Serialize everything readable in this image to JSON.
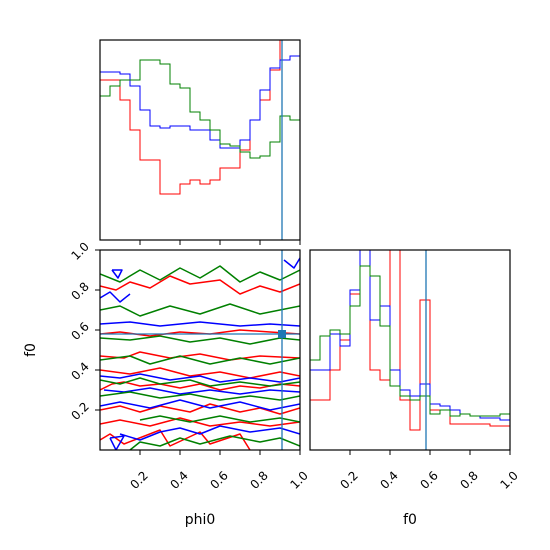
{
  "chart_data": {
    "type": "corner",
    "parameters": [
      "phi0",
      "f0"
    ],
    "xlabel_phi0": "phi0",
    "xlabel_f0": "f0",
    "ylabel_f0": "f0",
    "ticks": {
      "phi0": [
        0.2,
        0.4,
        0.6,
        0.8,
        1.0
      ],
      "f0": [
        0.2,
        0.4,
        0.6,
        0.8,
        1.0
      ]
    },
    "tick_labels": {
      "phi0": [
        "0.2",
        "0.4",
        "0.6",
        "0.8",
        "1.0"
      ],
      "f0": [
        "0.2",
        "0.4",
        "0.6",
        "0.8",
        "1.0"
      ]
    },
    "xlim": [
      0.0,
      1.0
    ],
    "ylim": [
      0.0,
      1.0
    ],
    "truth": {
      "phi0": 0.91,
      "f0": 0.58,
      "color": "#1f77b4"
    },
    "colors": {
      "red": "#ff0000",
      "blue": "#0000ff",
      "green": "#008000"
    },
    "hist_phi0": {
      "bins": [
        0,
        0.05,
        0.1,
        0.15,
        0.2,
        0.25,
        0.3,
        0.35,
        0.4,
        0.45,
        0.5,
        0.55,
        0.6,
        0.65,
        0.7,
        0.75,
        0.8,
        0.85,
        0.9,
        0.95,
        1.0
      ],
      "series": [
        {
          "color": "red",
          "values": [
            0.8,
            0.8,
            0.7,
            0.55,
            0.4,
            0.4,
            0.23,
            0.23,
            0.28,
            0.3,
            0.28,
            0.3,
            0.36,
            0.36,
            0.45,
            0.6,
            0.7,
            0.85,
            1.05,
            1.05
          ]
        },
        {
          "color": "blue",
          "values": [
            0.84,
            0.84,
            0.83,
            0.77,
            0.65,
            0.57,
            0.56,
            0.57,
            0.57,
            0.55,
            0.55,
            0.5,
            0.46,
            0.46,
            0.5,
            0.6,
            0.75,
            0.86,
            0.9,
            0.92
          ]
        },
        {
          "color": "green",
          "values": [
            0.72,
            0.77,
            0.8,
            0.8,
            0.9,
            0.9,
            0.88,
            0.78,
            0.76,
            0.64,
            0.6,
            0.55,
            0.48,
            0.47,
            0.44,
            0.41,
            0.42,
            0.49,
            0.62,
            0.6
          ]
        }
      ]
    },
    "hist_f0": {
      "bins": [
        0,
        0.05,
        0.1,
        0.15,
        0.2,
        0.25,
        0.3,
        0.35,
        0.4,
        0.45,
        0.5,
        0.55,
        0.6,
        0.65,
        0.7,
        0.75,
        0.8,
        0.85,
        0.9,
        0.95,
        1.0
      ],
      "series": [
        {
          "color": "red",
          "values": [
            0.25,
            0.25,
            0.4,
            0.55,
            0.78,
            1.1,
            0.4,
            0.35,
            1.2,
            0.25,
            0.1,
            0.75,
            0.2,
            0.2,
            0.13,
            0.13,
            0.13,
            0.13,
            0.12,
            0.12
          ]
        },
        {
          "color": "blue",
          "values": [
            0.4,
            0.4,
            0.58,
            0.52,
            0.8,
            1.15,
            0.65,
            0.72,
            0.4,
            0.3,
            0.27,
            0.33,
            0.23,
            0.22,
            0.2,
            0.18,
            0.17,
            0.16,
            0.16,
            0.15
          ]
        },
        {
          "color": "green",
          "values": [
            0.45,
            0.57,
            0.6,
            0.58,
            0.72,
            0.92,
            0.87,
            0.62,
            0.32,
            0.27,
            0.25,
            0.27,
            0.18,
            0.2,
            0.17,
            0.18,
            0.17,
            0.17,
            0.17,
            0.18
          ]
        }
      ]
    },
    "contours_2d": [
      {
        "color": "red",
        "paths": [
          [
            [
              0.0,
              0.3
            ],
            [
              0.06,
              0.33
            ],
            [
              0.12,
              0.34
            ],
            [
              0.2,
              0.32
            ],
            [
              0.3,
              0.33
            ],
            [
              0.4,
              0.31
            ],
            [
              0.5,
              0.33
            ],
            [
              0.6,
              0.3
            ],
            [
              0.7,
              0.32
            ],
            [
              0.8,
              0.31
            ],
            [
              0.9,
              0.33
            ],
            [
              1.0,
              0.32
            ]
          ],
          [
            [
              0.0,
              0.2
            ],
            [
              0.1,
              0.22
            ],
            [
              0.2,
              0.19
            ],
            [
              0.3,
              0.22
            ],
            [
              0.45,
              0.19
            ],
            [
              0.55,
              0.23
            ],
            [
              0.7,
              0.19
            ],
            [
              0.8,
              0.21
            ],
            [
              0.9,
              0.18
            ],
            [
              1.0,
              0.21
            ]
          ],
          [
            [
              0.0,
              0.58
            ],
            [
              0.1,
              0.59
            ],
            [
              0.25,
              0.57
            ],
            [
              0.4,
              0.59
            ],
            [
              0.55,
              0.58
            ],
            [
              0.7,
              0.6
            ],
            [
              0.85,
              0.59
            ],
            [
              1.0,
              0.58
            ]
          ],
          [
            [
              0.0,
              0.82
            ],
            [
              0.08,
              0.8
            ],
            [
              0.15,
              0.84
            ],
            [
              0.25,
              0.81
            ],
            [
              0.35,
              0.87
            ],
            [
              0.45,
              0.83
            ],
            [
              0.6,
              0.85
            ],
            [
              0.7,
              0.78
            ],
            [
              0.8,
              0.82
            ],
            [
              0.9,
              0.79
            ],
            [
              1.0,
              0.83
            ]
          ],
          [
            [
              0.0,
              0.47
            ],
            [
              0.12,
              0.46
            ],
            [
              0.2,
              0.49
            ],
            [
              0.35,
              0.46
            ],
            [
              0.5,
              0.48
            ],
            [
              0.65,
              0.45
            ],
            [
              0.8,
              0.47
            ],
            [
              1.0,
              0.46
            ]
          ],
          [
            [
              0.0,
              0.05
            ],
            [
              0.05,
              0.08
            ],
            [
              0.12,
              0.03
            ],
            [
              0.3,
              0.1
            ],
            [
              0.35,
              0.02
            ],
            [
              0.5,
              0.09
            ],
            [
              0.55,
              0.03
            ],
            [
              0.7,
              0.08
            ],
            [
              0.75,
              0.0
            ]
          ],
          [
            [
              0.0,
              0.4
            ],
            [
              0.15,
              0.38
            ],
            [
              0.3,
              0.41
            ],
            [
              0.45,
              0.37
            ],
            [
              0.6,
              0.39
            ],
            [
              0.75,
              0.36
            ],
            [
              0.9,
              0.39
            ],
            [
              1.0,
              0.37
            ]
          ],
          [
            [
              0.0,
              0.13
            ],
            [
              0.1,
              0.15
            ],
            [
              0.25,
              0.12
            ],
            [
              0.4,
              0.16
            ],
            [
              0.55,
              0.12
            ],
            [
              0.7,
              0.14
            ],
            [
              0.85,
              0.12
            ],
            [
              1.0,
              0.14
            ]
          ]
        ]
      },
      {
        "color": "blue",
        "paths": [
          [
            [
              0.0,
              0.37
            ],
            [
              0.1,
              0.36
            ],
            [
              0.2,
              0.38
            ],
            [
              0.35,
              0.35
            ],
            [
              0.5,
              0.37
            ],
            [
              0.6,
              0.34
            ],
            [
              0.75,
              0.36
            ],
            [
              0.9,
              0.34
            ],
            [
              1.0,
              0.36
            ]
          ],
          [
            [
              0.0,
              0.22
            ],
            [
              0.1,
              0.24
            ],
            [
              0.25,
              0.21
            ],
            [
              0.4,
              0.25
            ],
            [
              0.55,
              0.21
            ],
            [
              0.7,
              0.24
            ],
            [
              0.85,
              0.2
            ],
            [
              1.0,
              0.23
            ]
          ],
          [
            [
              0.0,
              0.63
            ],
            [
              0.15,
              0.64
            ],
            [
              0.3,
              0.62
            ],
            [
              0.5,
              0.64
            ],
            [
              0.7,
              0.62
            ],
            [
              0.85,
              0.63
            ],
            [
              1.0,
              0.62
            ]
          ],
          [
            [
              0.02,
              0.3
            ],
            [
              0.12,
              0.29
            ],
            [
              0.25,
              0.31
            ],
            [
              0.4,
              0.28
            ],
            [
              0.55,
              0.3
            ],
            [
              0.7,
              0.28
            ],
            [
              0.85,
              0.3
            ],
            [
              1.0,
              0.29
            ]
          ],
          [
            [
              0.05,
              0.06
            ],
            [
              0.08,
              0.0
            ],
            [
              0.12,
              0.07
            ],
            [
              0.05,
              0.06
            ]
          ],
          [
            [
              0.06,
              0.9
            ],
            [
              0.09,
              0.86
            ],
            [
              0.11,
              0.9
            ],
            [
              0.06,
              0.9
            ]
          ],
          [
            [
              0.1,
              0.08
            ],
            [
              0.2,
              0.05
            ],
            [
              0.3,
              0.09
            ],
            [
              0.4,
              0.11
            ],
            [
              0.5,
              0.08
            ],
            [
              0.6,
              0.12
            ],
            [
              0.75,
              0.09
            ],
            [
              0.9,
              0.11
            ],
            [
              1.0,
              0.08
            ]
          ],
          [
            [
              0.0,
              0.76
            ],
            [
              0.05,
              0.79
            ],
            [
              0.1,
              0.74
            ],
            [
              0.15,
              0.78
            ]
          ],
          [
            [
              0.92,
              0.95
            ],
            [
              0.97,
              0.91
            ],
            [
              1.0,
              0.96
            ]
          ]
        ]
      },
      {
        "color": "green",
        "paths": [
          [
            [
              0.0,
              0.35
            ],
            [
              0.1,
              0.33
            ],
            [
              0.2,
              0.36
            ],
            [
              0.3,
              0.33
            ],
            [
              0.45,
              0.35
            ],
            [
              0.55,
              0.32
            ],
            [
              0.7,
              0.34
            ],
            [
              0.85,
              0.32
            ],
            [
              1.0,
              0.34
            ]
          ],
          [
            [
              0.0,
              0.27
            ],
            [
              0.15,
              0.29
            ],
            [
              0.3,
              0.26
            ],
            [
              0.45,
              0.28
            ],
            [
              0.6,
              0.25
            ],
            [
              0.75,
              0.27
            ],
            [
              0.9,
              0.25
            ],
            [
              1.0,
              0.27
            ]
          ],
          [
            [
              0.0,
              0.56
            ],
            [
              0.15,
              0.55
            ],
            [
              0.3,
              0.57
            ],
            [
              0.45,
              0.54
            ],
            [
              0.6,
              0.56
            ],
            [
              0.75,
              0.53
            ],
            [
              0.9,
              0.56
            ],
            [
              1.0,
              0.55
            ]
          ],
          [
            [
              0.0,
              0.88
            ],
            [
              0.1,
              0.84
            ],
            [
              0.2,
              0.9
            ],
            [
              0.3,
              0.85
            ],
            [
              0.4,
              0.91
            ],
            [
              0.5,
              0.86
            ],
            [
              0.6,
              0.92
            ],
            [
              0.7,
              0.84
            ],
            [
              0.8,
              0.89
            ],
            [
              0.9,
              0.85
            ],
            [
              1.0,
              0.9
            ]
          ],
          [
            [
              0.0,
              0.7
            ],
            [
              0.1,
              0.72
            ],
            [
              0.2,
              0.67
            ],
            [
              0.35,
              0.72
            ],
            [
              0.5,
              0.68
            ],
            [
              0.65,
              0.73
            ],
            [
              0.8,
              0.68
            ],
            [
              1.0,
              0.72
            ]
          ],
          [
            [
              0.0,
              0.45
            ],
            [
              0.15,
              0.47
            ],
            [
              0.25,
              0.43
            ],
            [
              0.4,
              0.47
            ],
            [
              0.55,
              0.43
            ],
            [
              0.7,
              0.46
            ],
            [
              0.85,
              0.43
            ],
            [
              1.0,
              0.46
            ]
          ],
          [
            [
              0.15,
              0.0
            ],
            [
              0.2,
              0.04
            ],
            [
              0.3,
              0.02
            ],
            [
              0.4,
              0.06
            ],
            [
              0.5,
              0.03
            ],
            [
              0.65,
              0.07
            ],
            [
              0.8,
              0.04
            ],
            [
              0.9,
              0.06
            ],
            [
              1.0,
              0.02
            ]
          ],
          [
            [
              0.2,
              0.15
            ],
            [
              0.3,
              0.17
            ],
            [
              0.45,
              0.14
            ],
            [
              0.6,
              0.17
            ],
            [
              0.75,
              0.14
            ],
            [
              0.9,
              0.16
            ],
            [
              1.0,
              0.14
            ]
          ]
        ]
      }
    ]
  }
}
